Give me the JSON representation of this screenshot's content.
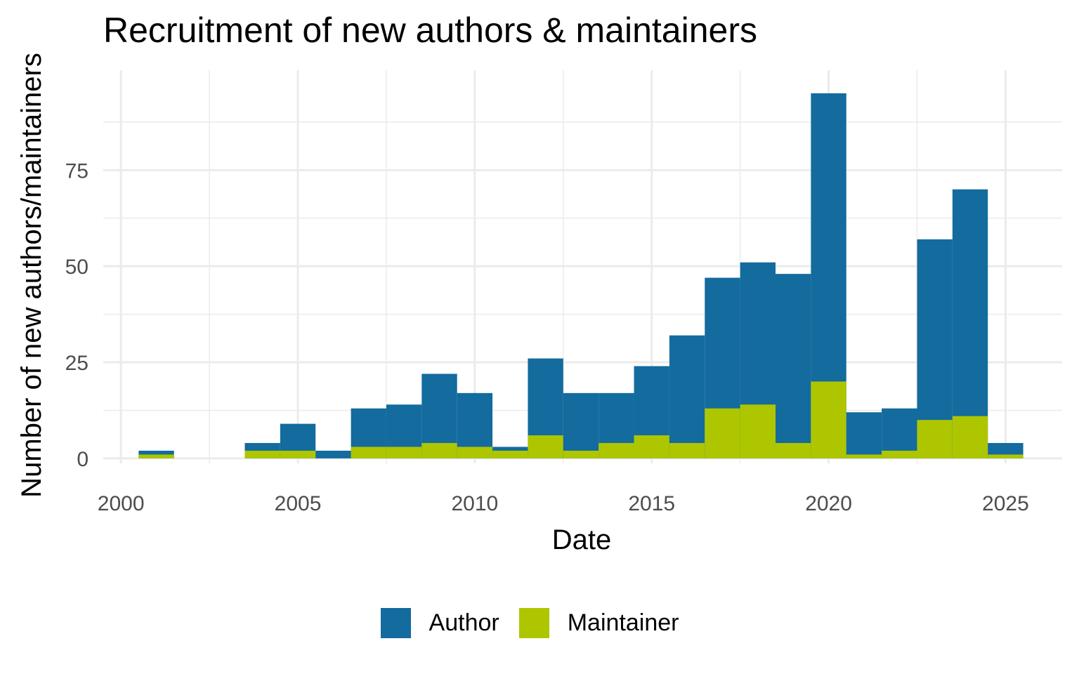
{
  "chart_data": {
    "type": "bar",
    "stacked": true,
    "title": "Recruitment of new authors & maintainers",
    "xlabel": "Date",
    "ylabel": "Number of new authors/maintainers",
    "x_start": [
      2000.5,
      2001.5,
      2002.5,
      2003.5,
      2004.5,
      2005.5,
      2006.5,
      2007.5,
      2008.5,
      2009.5,
      2010.5,
      2011.5,
      2012.5,
      2013.5,
      2014.5,
      2015.5,
      2016.5,
      2017.5,
      2018.5,
      2019.5,
      2020.5,
      2021.5,
      2022.5,
      2023.5,
      2024.5
    ],
    "series": [
      {
        "name": "Author",
        "color": "#136b9e",
        "totals": [
          2,
          0,
          0,
          4,
          9,
          2,
          13,
          14,
          22,
          17,
          3,
          26,
          17,
          17,
          24,
          32,
          47,
          51,
          48,
          95,
          12,
          13,
          57,
          70,
          4
        ]
      },
      {
        "name": "Maintainer",
        "color": "#adc600",
        "values": [
          1,
          0,
          0,
          2,
          2,
          0,
          3,
          3,
          4,
          3,
          2,
          6,
          2,
          4,
          6,
          4,
          13,
          14,
          4,
          20,
          1,
          2,
          10,
          11,
          1
        ]
      }
    ],
    "xlim": [
      1999.5,
      2026.6
    ],
    "ylim": [
      -1.3,
      101
    ],
    "x_ticks": [
      "2000",
      "2005",
      "2010",
      "2015",
      "2020",
      "2025"
    ],
    "x_tick_values": [
      2000,
      2005,
      2010,
      2015,
      2020,
      2025
    ],
    "y_ticks": [
      "0",
      "25",
      "50",
      "75"
    ],
    "y_tick_values": [
      0,
      25,
      50,
      75
    ],
    "grid": true,
    "legend_position": "bottom"
  }
}
